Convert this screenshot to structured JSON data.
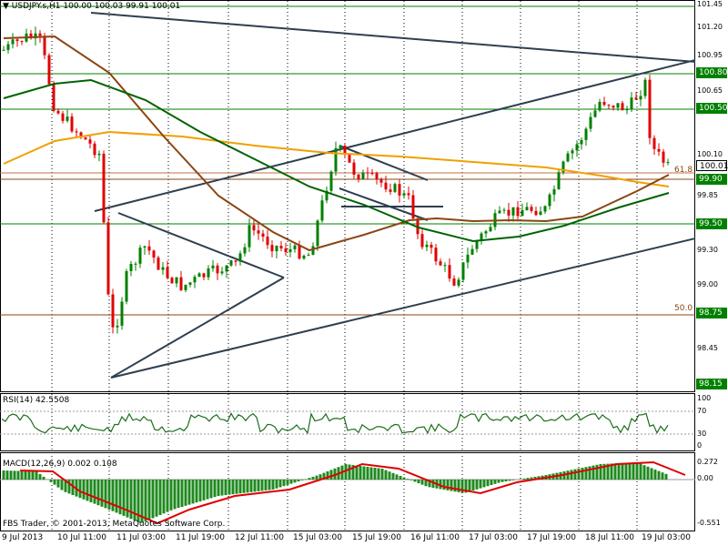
{
  "main_chart": {
    "symbol": "USDJPY.s,H1",
    "ohlc_text": "100.00 100.03 99.91 100.01",
    "fib_labels": {
      "f618": "61.8",
      "f50": "50.0"
    },
    "price_axis_labels": [
      "101.45",
      "101.20",
      "100.95",
      "100.65",
      "100.10",
      "99.85",
      "99.30",
      "99.00",
      "98.45",
      "98.15"
    ],
    "price_boxes": {
      "p10080": "100.80",
      "p10050": "100.50",
      "p10001": "100.01",
      "p9990": "99.90",
      "p9950": "99.50",
      "p9875": "98.75",
      "p9815": "98.15"
    }
  },
  "rsi": {
    "label": "RSI(14) 42.5508",
    "axis": [
      "100",
      "70",
      "30",
      "0"
    ]
  },
  "macd": {
    "label": "MACD(12,26,9) 0.002 0.108",
    "axis": [
      "0.272",
      "0.00",
      "-0.551"
    ]
  },
  "footer": {
    "copyright": "FBS Trader, © 2001-2013, MetaQuotes Software Corp.",
    "time_labels": [
      "9 Jul 2013",
      "10 Jul 11:00",
      "11 Jul 03:00",
      "11 Jul 19:00",
      "12 Jul 11:00",
      "15 Jul 03:00",
      "15 Jul 19:00",
      "16 Jul 11:00",
      "17 Jul 03:00",
      "17 Jul 19:00",
      "18 Jul 11:00",
      "19 Jul 03:00"
    ]
  },
  "colors": {
    "bull": "#008000",
    "bear": "#e00000",
    "ma_brown": "#8b4513",
    "ma_orange": "#f0a000",
    "ma_green": "#006400",
    "trendline": "#2f3f4f",
    "hline_green": "#008000"
  }
}
